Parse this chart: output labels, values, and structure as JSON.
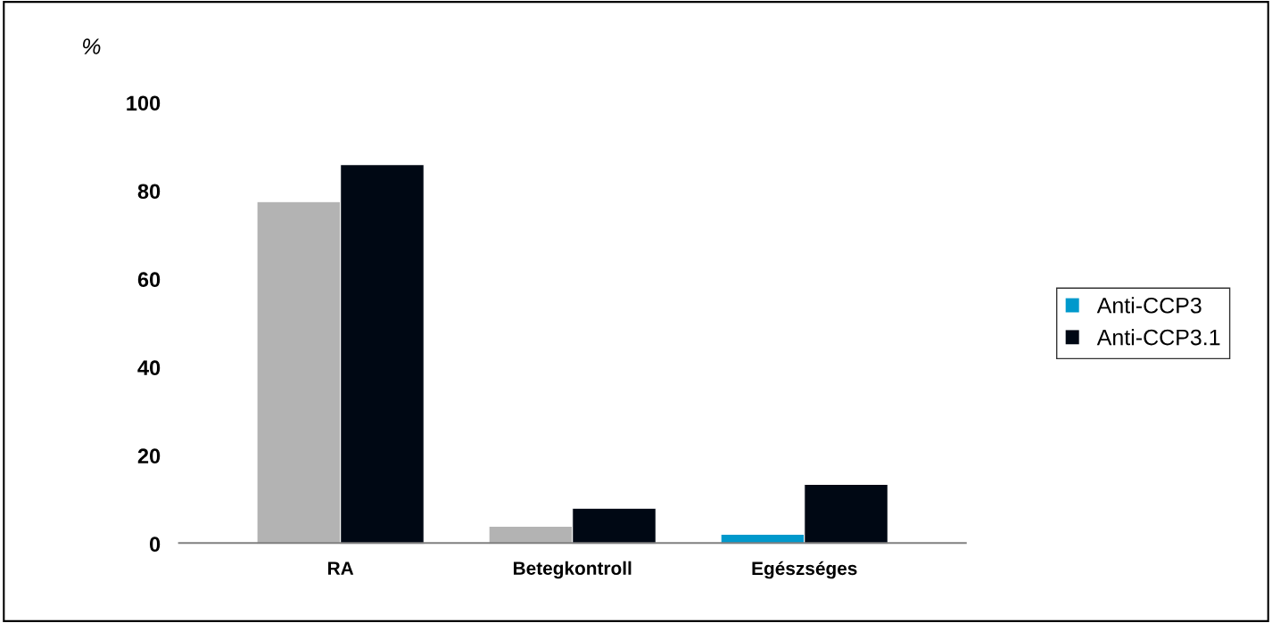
{
  "chart_data": {
    "type": "bar",
    "ylabel": "%",
    "categories": [
      "RA",
      "Betegkontroll",
      "Egészséges"
    ],
    "series": [
      {
        "name": "Anti-CCP3",
        "color": "#0099cc",
        "colors": [
          "#b3b3b3",
          "#b3b3b3",
          "#0099cc"
        ],
        "values": [
          77.6,
          4.0,
          2.2
        ]
      },
      {
        "name": "Anti-CCP3.1",
        "color": "#000814",
        "values": [
          86,
          8.1,
          13.5
        ]
      }
    ],
    "ylim": [
      0,
      100
    ],
    "yticks": [
      0,
      20,
      40,
      60,
      80,
      100
    ],
    "grid": false,
    "legend": "right"
  }
}
